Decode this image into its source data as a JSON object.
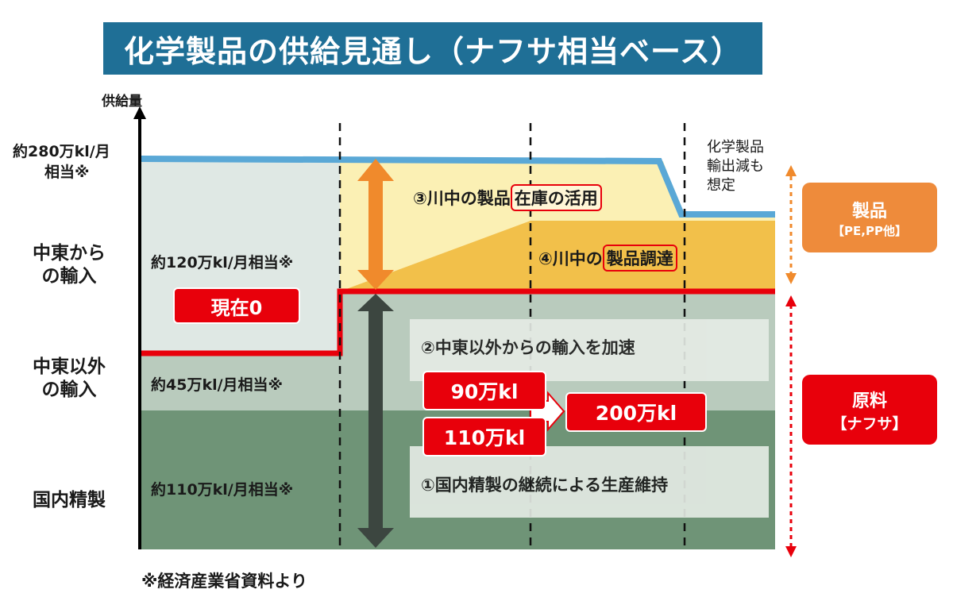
{
  "title": "化学製品の供給見通し（ナフサ相当ベース）",
  "y_axis_label": "供給量",
  "row_labels": {
    "top_line_1": "約280万kl/月",
    "top_line_2": "相当※",
    "middle_east_1": "中東から",
    "middle_east_2": "の輸入",
    "non_middle_east_1": "中東以外",
    "non_middle_east_2": "の輸入",
    "domestic": "国内精製"
  },
  "current_values": {
    "middle_east": "約120万kl/月相当※",
    "non_middle_east": "約45万kl/月相当※",
    "domestic": "約110万kl/月相当※",
    "now_zero": "現在0"
  },
  "measures": {
    "m3_prefix": "③川中の製品",
    "m3_highlight": "在庫の活用",
    "m4_prefix": "④川中の",
    "m4_highlight": "製品調達",
    "m2": "②中東以外からの輸入を加速",
    "m1": "①国内精製の継続による生産維持"
  },
  "amounts": {
    "from_a": "90万kl",
    "from_b": "110万kl",
    "to": "200万kl"
  },
  "note_right_1": "化学製品",
  "note_right_2": "輸出減も",
  "note_right_3": "想定",
  "badges": {
    "product_title": "製品",
    "product_sub": "【PE,PP他】",
    "raw_title": "原料",
    "raw_sub": "【ナフサ】"
  },
  "footnote": "※経済産業省資料より",
  "colors": {
    "title_bg": "#1f6f96",
    "top_band": "#dfe8e4",
    "mid_band": "#b9cbbd",
    "bottom_band": "#6f9477",
    "inventory": "#fbf0b4",
    "procurement": "#f2c04a",
    "supply_line": "#5aa8d6",
    "red_line": "#e8000b",
    "orange": "#f08a2c",
    "product_badge": "#ee8b3b",
    "raw_badge": "#e8000b"
  }
}
